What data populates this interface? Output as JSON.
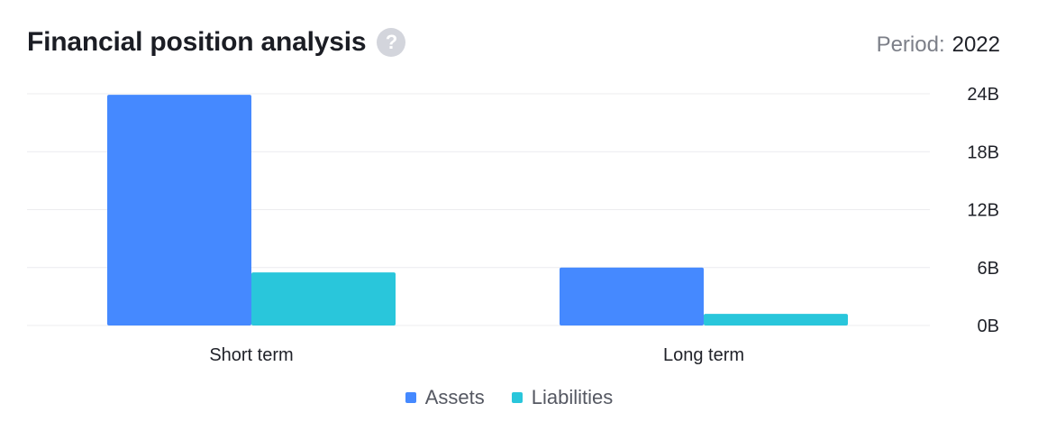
{
  "header": {
    "title": "Financial position analysis",
    "help_icon": "question-circle-icon",
    "help_glyph": "?",
    "period_label": "Period:",
    "period_value": "2022"
  },
  "colors": {
    "assets": "#4589ff",
    "liabilities": "#29c6db",
    "grid": "#ececef"
  },
  "chart_data": {
    "type": "bar",
    "categories": [
      "Short term",
      "Long term"
    ],
    "series": [
      {
        "name": "Assets",
        "values": [
          23.9,
          6.0
        ]
      },
      {
        "name": "Liabilities",
        "values": [
          5.5,
          1.2
        ]
      }
    ],
    "y_ticks": [
      "0B",
      "6B",
      "12B",
      "18B",
      "24B"
    ],
    "ylim": [
      0,
      24
    ],
    "y_axis_side": "right",
    "grid": true,
    "legend_placement": "bottom-center"
  }
}
